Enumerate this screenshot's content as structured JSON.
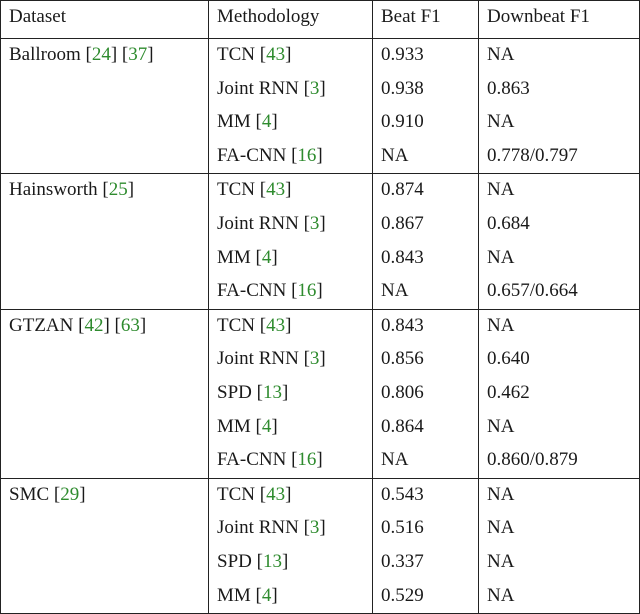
{
  "table": {
    "columns": [
      "Dataset",
      "Methodology",
      "Beat F1",
      "Downbeat F1"
    ],
    "groups": [
      {
        "dataset": "Ballroom [24] [37]",
        "rows": [
          [
            "TCN [43]",
            "0.933",
            "NA"
          ],
          [
            "Joint RNN [3]",
            "0.938",
            "0.863"
          ],
          [
            "MM [4]",
            "0.910",
            "NA"
          ],
          [
            "FA-CNN [16]",
            "NA",
            "0.778/0.797"
          ]
        ]
      },
      {
        "dataset": "Hainsworth [25]",
        "rows": [
          [
            "TCN [43]",
            "0.874",
            "NA"
          ],
          [
            "Joint RNN [3]",
            "0.867",
            "0.684"
          ],
          [
            "MM [4]",
            "0.843",
            "NA"
          ],
          [
            "FA-CNN [16]",
            "NA",
            "0.657/0.664"
          ]
        ]
      },
      {
        "dataset": "GTZAN [42] [63]",
        "rows": [
          [
            "TCN [43]",
            "0.843",
            "NA"
          ],
          [
            "Joint RNN [3]",
            "0.856",
            "0.640"
          ],
          [
            "SPD [13]",
            "0.806",
            "0.462"
          ],
          [
            "MM [4]",
            "0.864",
            "NA"
          ],
          [
            "FA-CNN [16]",
            "NA",
            "0.860/0.879"
          ]
        ]
      },
      {
        "dataset": "SMC [29]",
        "rows": [
          [
            "TCN [43]",
            "0.543",
            "NA"
          ],
          [
            "Joint RNN [3]",
            "0.516",
            "NA"
          ],
          [
            "SPD [13]",
            "0.337",
            "NA"
          ],
          [
            "MM [4]",
            "0.529",
            "NA"
          ]
        ]
      }
    ]
  }
}
